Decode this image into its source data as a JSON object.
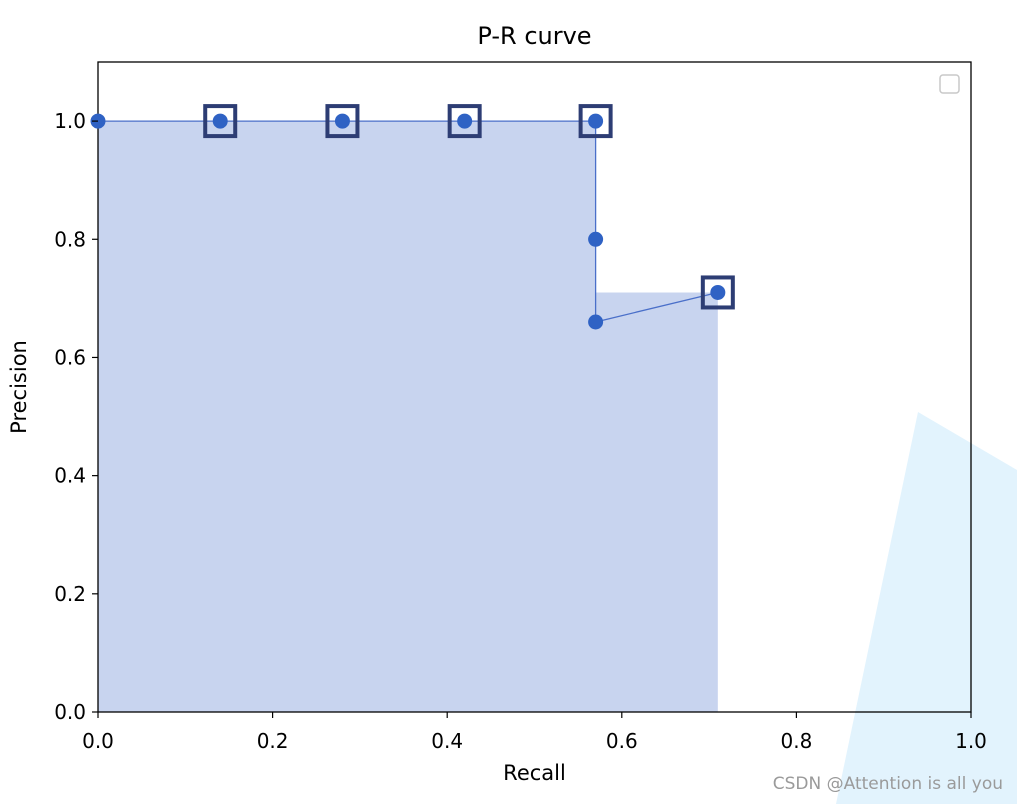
{
  "chart_data": {
    "type": "area",
    "title": "P-R curve",
    "xlabel": "Recall",
    "ylabel": "Precision",
    "xlim": [
      0.0,
      1.0
    ],
    "ylim": [
      0.0,
      1.1
    ],
    "xticks": [
      "0.0",
      "0.2",
      "0.4",
      "0.6",
      "0.8",
      "1.0"
    ],
    "yticks": [
      "0.0",
      "0.2",
      "0.4",
      "0.6",
      "0.8",
      "1.0"
    ],
    "grid": false,
    "legend": "top-right",
    "series": [
      {
        "points": [
          {
            "x": 0.0,
            "y": 1.0
          },
          {
            "x": 0.14,
            "y": 1.0
          },
          {
            "x": 0.28,
            "y": 1.0
          },
          {
            "x": 0.42,
            "y": 1.0
          },
          {
            "x": 0.57,
            "y": 1.0
          },
          {
            "x": 0.57,
            "y": 0.8
          },
          {
            "x": 0.57,
            "y": 0.66
          },
          {
            "x": 0.71,
            "y": 0.71
          }
        ],
        "highlighted_x": [
          0.14,
          0.28,
          0.42,
          0.57,
          0.71
        ],
        "interpolated_fill": [
          {
            "x": 0.0,
            "y": 1.0
          },
          {
            "x": 0.57,
            "y": 1.0
          },
          {
            "x": 0.57,
            "y": 0.71
          },
          {
            "x": 0.71,
            "y": 0.71
          },
          {
            "x": 0.71,
            "y": 0.0
          }
        ]
      }
    ],
    "colors": {
      "line": "#4a6fc9",
      "marker": "#2f62c4",
      "fill": "#c8d4ef",
      "highlight_box": "#2d3d74",
      "decor": "#e2f3fd"
    }
  },
  "watermark": "CSDN @Attention is all you"
}
